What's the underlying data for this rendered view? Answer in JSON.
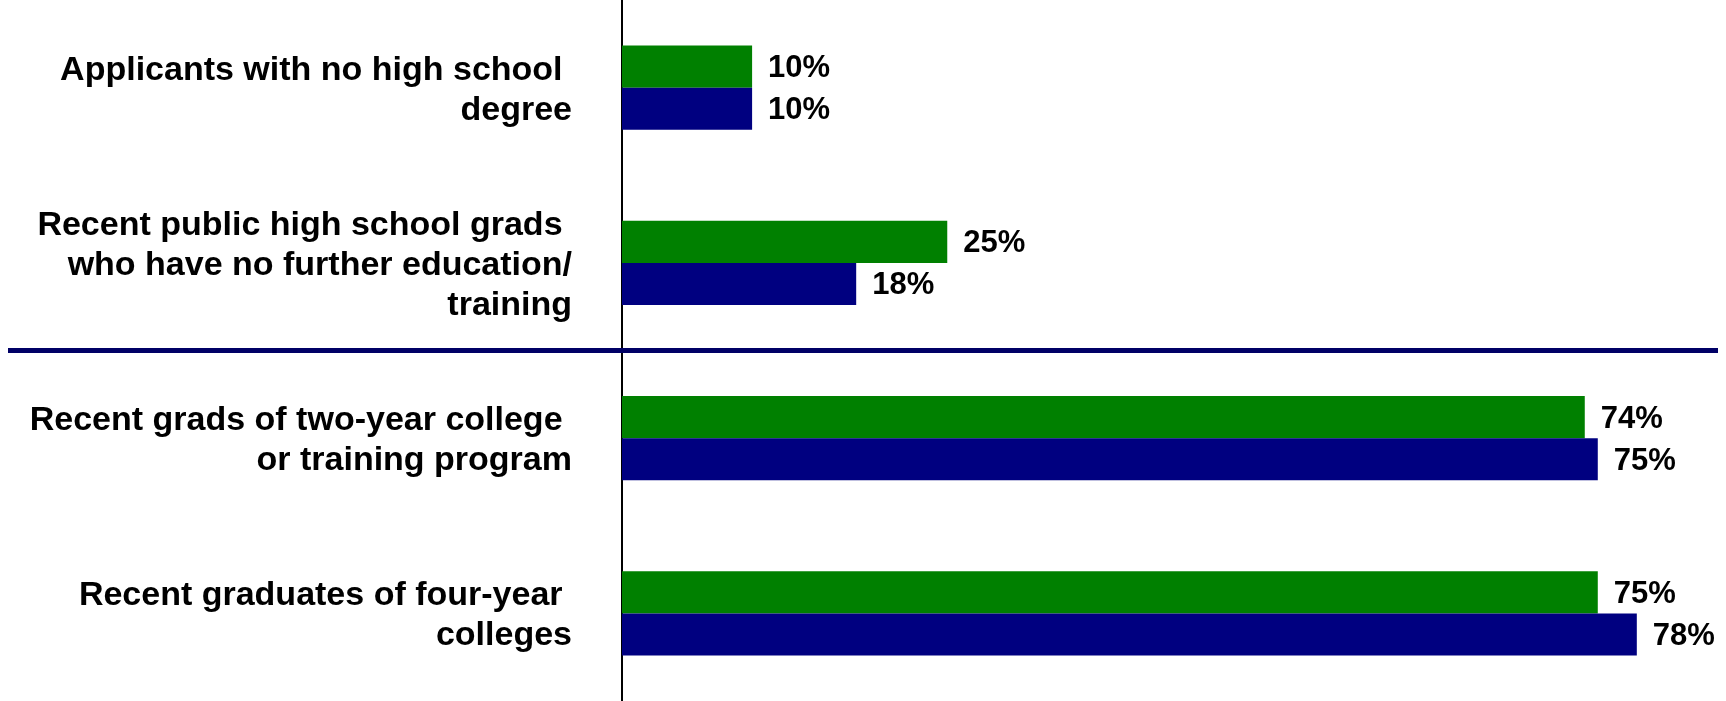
{
  "chart_data": {
    "type": "bar",
    "orientation": "horizontal",
    "categories": [
      "Applicants with no high school degree",
      "Recent public high school grads who have no further education/training",
      "Recent grads of two-year college or training program",
      "Recent graduates of four-year colleges"
    ],
    "series": [
      {
        "color": "#008000",
        "values": [
          10,
          25,
          74,
          75
        ],
        "value_labels": [
          "10%",
          "25%",
          "74%",
          "75%"
        ]
      },
      {
        "color": "#000080",
        "values": [
          10,
          18,
          75,
          78
        ],
        "value_labels": [
          "10%",
          "18%",
          "75%",
          "78%"
        ]
      }
    ],
    "grid": false
  }
}
